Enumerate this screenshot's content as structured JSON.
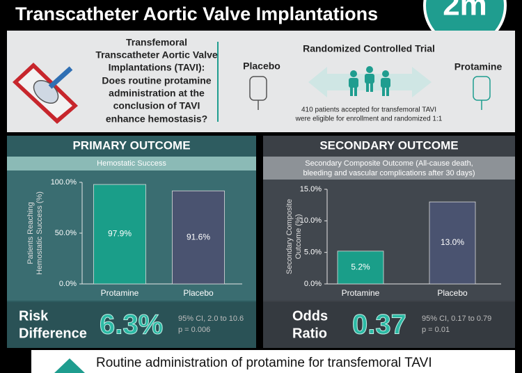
{
  "header": {
    "title": "Transcatheter Aortic Valve Implantations",
    "logo": "2m"
  },
  "question": {
    "lines": [
      "Transfemoral",
      "Transcatheter Aortic Valve",
      "Implantations (TAVI):",
      "Does routine protamine",
      "administration at the",
      "conclusion of TAVI",
      "enhance hemostasis?"
    ]
  },
  "trial": {
    "title": "Randomized Controlled Trial",
    "left_arm": "Placebo",
    "right_arm": "Protamine",
    "note": [
      "410 patients accepted for transfemoral TAVI",
      "were eligible for enrollment and randomized 1:1"
    ]
  },
  "chart_data": [
    {
      "type": "bar",
      "title": "PRIMARY OUTCOME",
      "subtitle": [
        "Hemostatic Success"
      ],
      "ylabel": [
        "Patients Reaching",
        "Hemostatic Success (%)"
      ],
      "categories": [
        "Protamine",
        "Placebo"
      ],
      "values": [
        97.9,
        91.6
      ],
      "value_labels": [
        "97.9%",
        "91.6%"
      ],
      "colors": [
        "#1a9e89",
        "#4a5370"
      ],
      "ylim": [
        0,
        100
      ],
      "yticks": [
        {
          "value": 0,
          "label": "0.0%"
        },
        {
          "value": 50,
          "label": "50.0%"
        },
        {
          "value": 100,
          "label": "100.0%"
        }
      ]
    },
    {
      "type": "bar",
      "title": "SECONDARY OUTCOME",
      "subtitle": [
        "Secondary Composite Outcome (All-cause death,",
        "bleeding and vascular complications after 30 days)"
      ],
      "ylabel": [
        "Secondary Composite",
        "Outcome (%)"
      ],
      "categories": [
        "Protamine",
        "Placebo"
      ],
      "values": [
        5.2,
        13.0
      ],
      "value_labels": [
        "5.2%",
        "13.0%"
      ],
      "colors": [
        "#1a9e89",
        "#4a5370"
      ],
      "ylim": [
        0,
        15
      ],
      "yticks": [
        {
          "value": 0,
          "label": "0.0%"
        },
        {
          "value": 5,
          "label": "5.0%"
        },
        {
          "value": 10,
          "label": "10.0%"
        },
        {
          "value": 15,
          "label": "15.0%"
        }
      ]
    }
  ],
  "results": [
    {
      "label": [
        "Risk",
        "Difference"
      ],
      "value": "6.3%",
      "ci": "95% CI, 2.0 to 10.6",
      "p": "p = 0.006"
    },
    {
      "label": [
        "Odds",
        "Ratio"
      ],
      "value": "0.37",
      "ci": "95% CI, 0.17 to 0.79",
      "p": "p = 0.01"
    }
  ],
  "footer": {
    "text": "Routine administration of protamine for transfemoral TAVI"
  }
}
